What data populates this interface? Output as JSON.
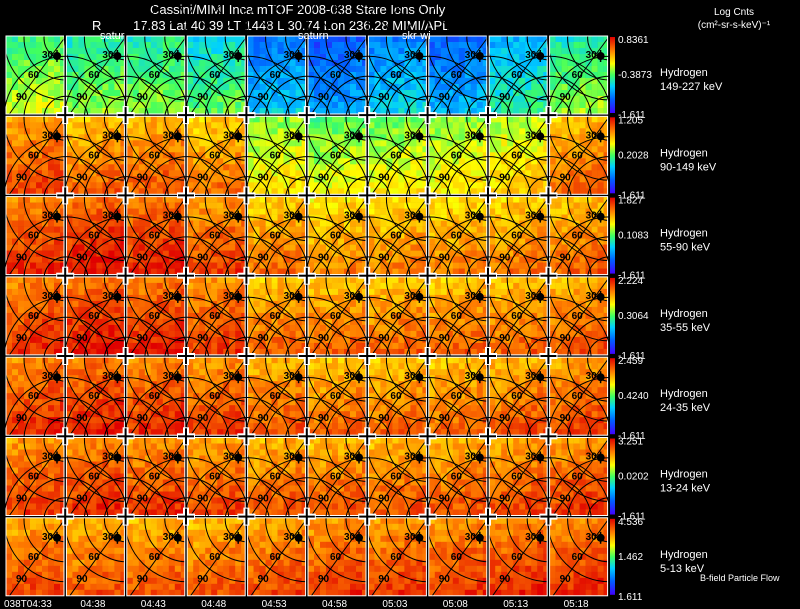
{
  "header": {
    "line1": "Cassini/MIMI Inca mTOF  2008-038   Stare   Ions Only",
    "line2_r": "R",
    "line2_rest": "17.83 Lat 40.39 LT 1448 L        30.74 Lon        236.28  MIMI/APL",
    "legend_line1": "Log Cnts",
    "legend_line2": "(cm²-sr-s-keV)⁻¹"
  },
  "overlays": {
    "saturn_1": "satur",
    "saturn_2": "saturn",
    "skr": "skr-wi"
  },
  "grid_labels": [
    "30",
    "60",
    "90"
  ],
  "rows": [
    {
      "species": "Hydrogen",
      "energy": "149-227 keV",
      "cmax": "0.8361",
      "cmid": "-0.3873",
      "cmin": "-1.611"
    },
    {
      "species": "Hydrogen",
      "energy": "90-149 keV",
      "cmax": "1.205",
      "cmid": "0.2028",
      "cmin": "-1.611"
    },
    {
      "species": "Hydrogen",
      "energy": "55-90 keV",
      "cmax": "1.827",
      "cmid": "0.1083",
      "cmin": "-1.611"
    },
    {
      "species": "Hydrogen",
      "energy": "35-55 keV",
      "cmax": "2.224",
      "cmid": "0.3064",
      "cmin": "-1.611"
    },
    {
      "species": "Hydrogen",
      "energy": "24-35 keV",
      "cmax": "2.459",
      "cmid": "0.4240",
      "cmin": "-1.611"
    },
    {
      "species": "Hydrogen",
      "energy": "13-24 keV",
      "cmax": "3.251",
      "cmid": "0.0202",
      "cmin": "-1.611"
    },
    {
      "species": "Hydrogen",
      "energy": "5-13 keV",
      "cmax": "4.536",
      "cmid": "1.462",
      "cmin": "1.611"
    }
  ],
  "times": [
    "038T04:33",
    "04:38",
    "04:43",
    "04:48",
    "04:53",
    "04:58",
    "05:03",
    "05:08",
    "05:13",
    "05:18"
  ],
  "bottom_note": "B-field  Particle Flow",
  "colors": {
    "background": "#000000",
    "grid_lines": "#000000",
    "text": "#ffffff"
  },
  "row_intensity": [
    [
      0.55,
      0.5,
      0.5,
      0.45,
      0.28,
      0.22,
      0.3,
      0.25,
      0.38,
      0.5
    ],
    [
      0.85,
      0.8,
      0.82,
      0.78,
      0.62,
      0.58,
      0.6,
      0.62,
      0.66,
      0.8
    ],
    [
      0.88,
      0.92,
      0.9,
      0.85,
      0.78,
      0.75,
      0.76,
      0.76,
      0.78,
      0.8
    ],
    [
      0.88,
      0.92,
      0.9,
      0.86,
      0.8,
      0.8,
      0.8,
      0.8,
      0.8,
      0.82
    ],
    [
      0.88,
      0.9,
      0.88,
      0.86,
      0.82,
      0.8,
      0.8,
      0.8,
      0.82,
      0.84
    ],
    [
      0.86,
      0.88,
      0.86,
      0.84,
      0.82,
      0.82,
      0.82,
      0.82,
      0.84,
      0.86
    ],
    [
      0.84,
      0.82,
      0.82,
      0.82,
      0.84,
      0.86,
      0.86,
      0.86,
      0.88,
      0.88
    ]
  ]
}
